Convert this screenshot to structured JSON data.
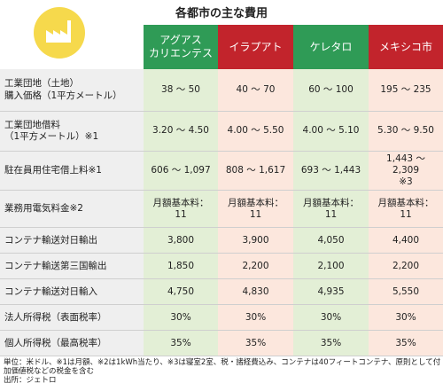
{
  "title": "各都市の主な費用",
  "logo_icon": "factory-icon",
  "columns": [
    "アグアス\nカリエンテス",
    "イラプアト",
    "ケレタロ",
    "メキシコ市"
  ],
  "rows": [
    {
      "label": "工業団地（土地）\n購入価格（1平方メートル）",
      "values": [
        "38 〜 50",
        "40 〜 70",
        "60 〜 100",
        "195 〜 235"
      ]
    },
    {
      "label": "工業団地借料\n（1平方メートル）※1",
      "values": [
        "3.20 〜 4.50",
        "4.00 〜 5.50",
        "4.00 〜 5.10",
        "5.30 〜 9.50"
      ]
    },
    {
      "label": "駐在員用住宅借上料※1",
      "values": [
        "606 〜 1,097",
        "808 〜 1,617",
        "693 〜 1,443",
        "1,443 〜 2,309\n※3"
      ]
    },
    {
      "label": "業務用電気料金※2",
      "values": [
        "月額基本料：\n11",
        "月額基本料：\n11",
        "月額基本料：\n11",
        "月額基本料：\n11"
      ]
    },
    {
      "label": "コンテナ輸送対日輸出",
      "values": [
        "3,800",
        "3,900",
        "4,050",
        "4,400"
      ]
    },
    {
      "label": "コンテナ輸送第三国輸出",
      "values": [
        "1,850",
        "2,200",
        "2,100",
        "2,200"
      ]
    },
    {
      "label": "コンテナ輸送対日輸入",
      "values": [
        "4,750",
        "4,830",
        "4,935",
        "5,550"
      ]
    },
    {
      "label": "法人所得税（表面税率）",
      "values": [
        "30%",
        "30%",
        "30%",
        "30%"
      ]
    },
    {
      "label": "個人所得税（最高税率）",
      "values": [
        "35%",
        "35%",
        "35%",
        "35%"
      ]
    }
  ],
  "notes": [
    "単位：米ドル、※1は月額、※2は1kWh当たり、※3は寝室2室、税・諸経費込み、コンテナは40フィートコンテナ、原則として付加価値税などの税金を含む",
    "出所：ジェトロ"
  ],
  "colors": {
    "green": "#2f9b56",
    "red": "#c2242c",
    "green_cell": "#e3efd6",
    "pink_cell": "#fce7dd",
    "label_cell": "#efefef",
    "logo": "#f6d94c"
  }
}
